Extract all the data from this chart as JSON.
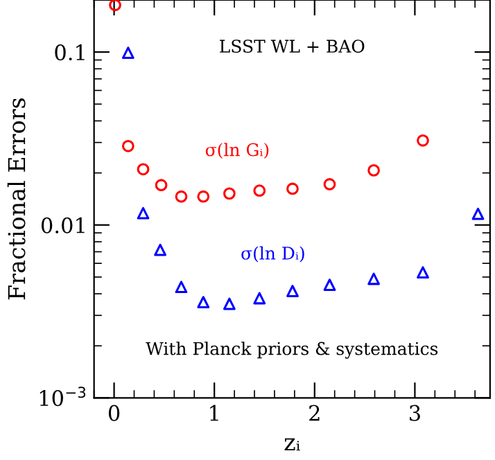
{
  "chart_data": {
    "type": "scatter",
    "xlabel": "zᵢ",
    "ylabel": "Fractional Errors",
    "log": "y",
    "xlim": [
      -0.2,
      3.75
    ],
    "xticks": [
      0,
      1,
      2,
      3
    ],
    "ylim": [
      0.001,
      0.2
    ],
    "yticks": [
      0.1,
      0.01,
      {
        "value": 0.001,
        "label": "10$^{−3}$"
      }
    ],
    "grid": false,
    "legend": false,
    "annotations": [
      "LSST WL + BAO",
      "With Planck priors & systematics"
    ],
    "series": [
      {
        "name": "σ(ln Gᵢ)",
        "color": "#ff0000",
        "marker": "circle",
        "x": [
          0.01,
          0.14,
          0.29,
          0.47,
          0.67,
          0.89,
          1.15,
          1.45,
          1.78,
          2.15,
          2.59,
          3.08
        ],
        "values": [
          0.187,
          0.0286,
          0.021,
          0.017,
          0.0146,
          0.0146,
          0.0152,
          0.0158,
          0.0162,
          0.0172,
          0.0207,
          0.0308
        ]
      },
      {
        "name": "σ(ln Dᵢ)",
        "color": "#0000ff",
        "marker": "triangle",
        "x": [
          0.14,
          0.29,
          0.46,
          0.67,
          0.89,
          1.15,
          1.45,
          1.78,
          2.15,
          2.59,
          3.08,
          3.63
        ],
        "values": [
          0.099,
          0.0117,
          0.00718,
          0.00438,
          0.00358,
          0.0035,
          0.00377,
          0.00415,
          0.00451,
          0.00488,
          0.00532,
          0.0116
        ]
      }
    ]
  }
}
